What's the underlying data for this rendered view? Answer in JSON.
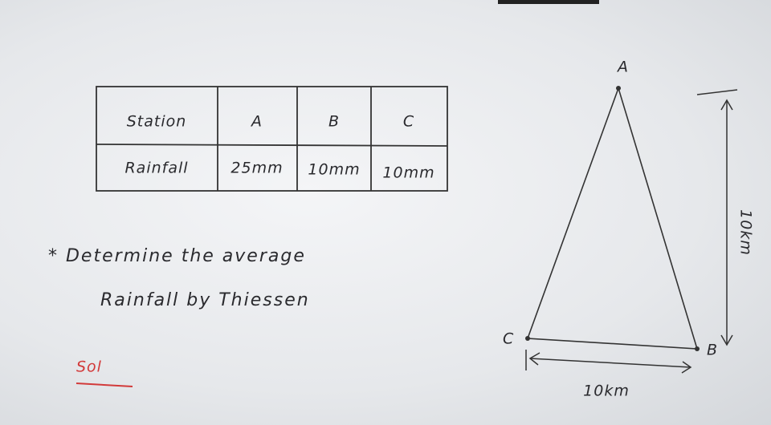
{
  "table": {
    "header": [
      "Station",
      "A",
      "B",
      "C"
    ],
    "rows": [
      [
        "Rainfall",
        "25mm",
        "10mm",
        "10mm"
      ]
    ]
  },
  "question": [
    "* Determine the average",
    "Rainfall by Thiessen"
  ],
  "solution_label": "Sol",
  "diagram": {
    "vertices": [
      "A",
      "B",
      "C"
    ],
    "base_length": "10km",
    "height_length": "10km"
  }
}
